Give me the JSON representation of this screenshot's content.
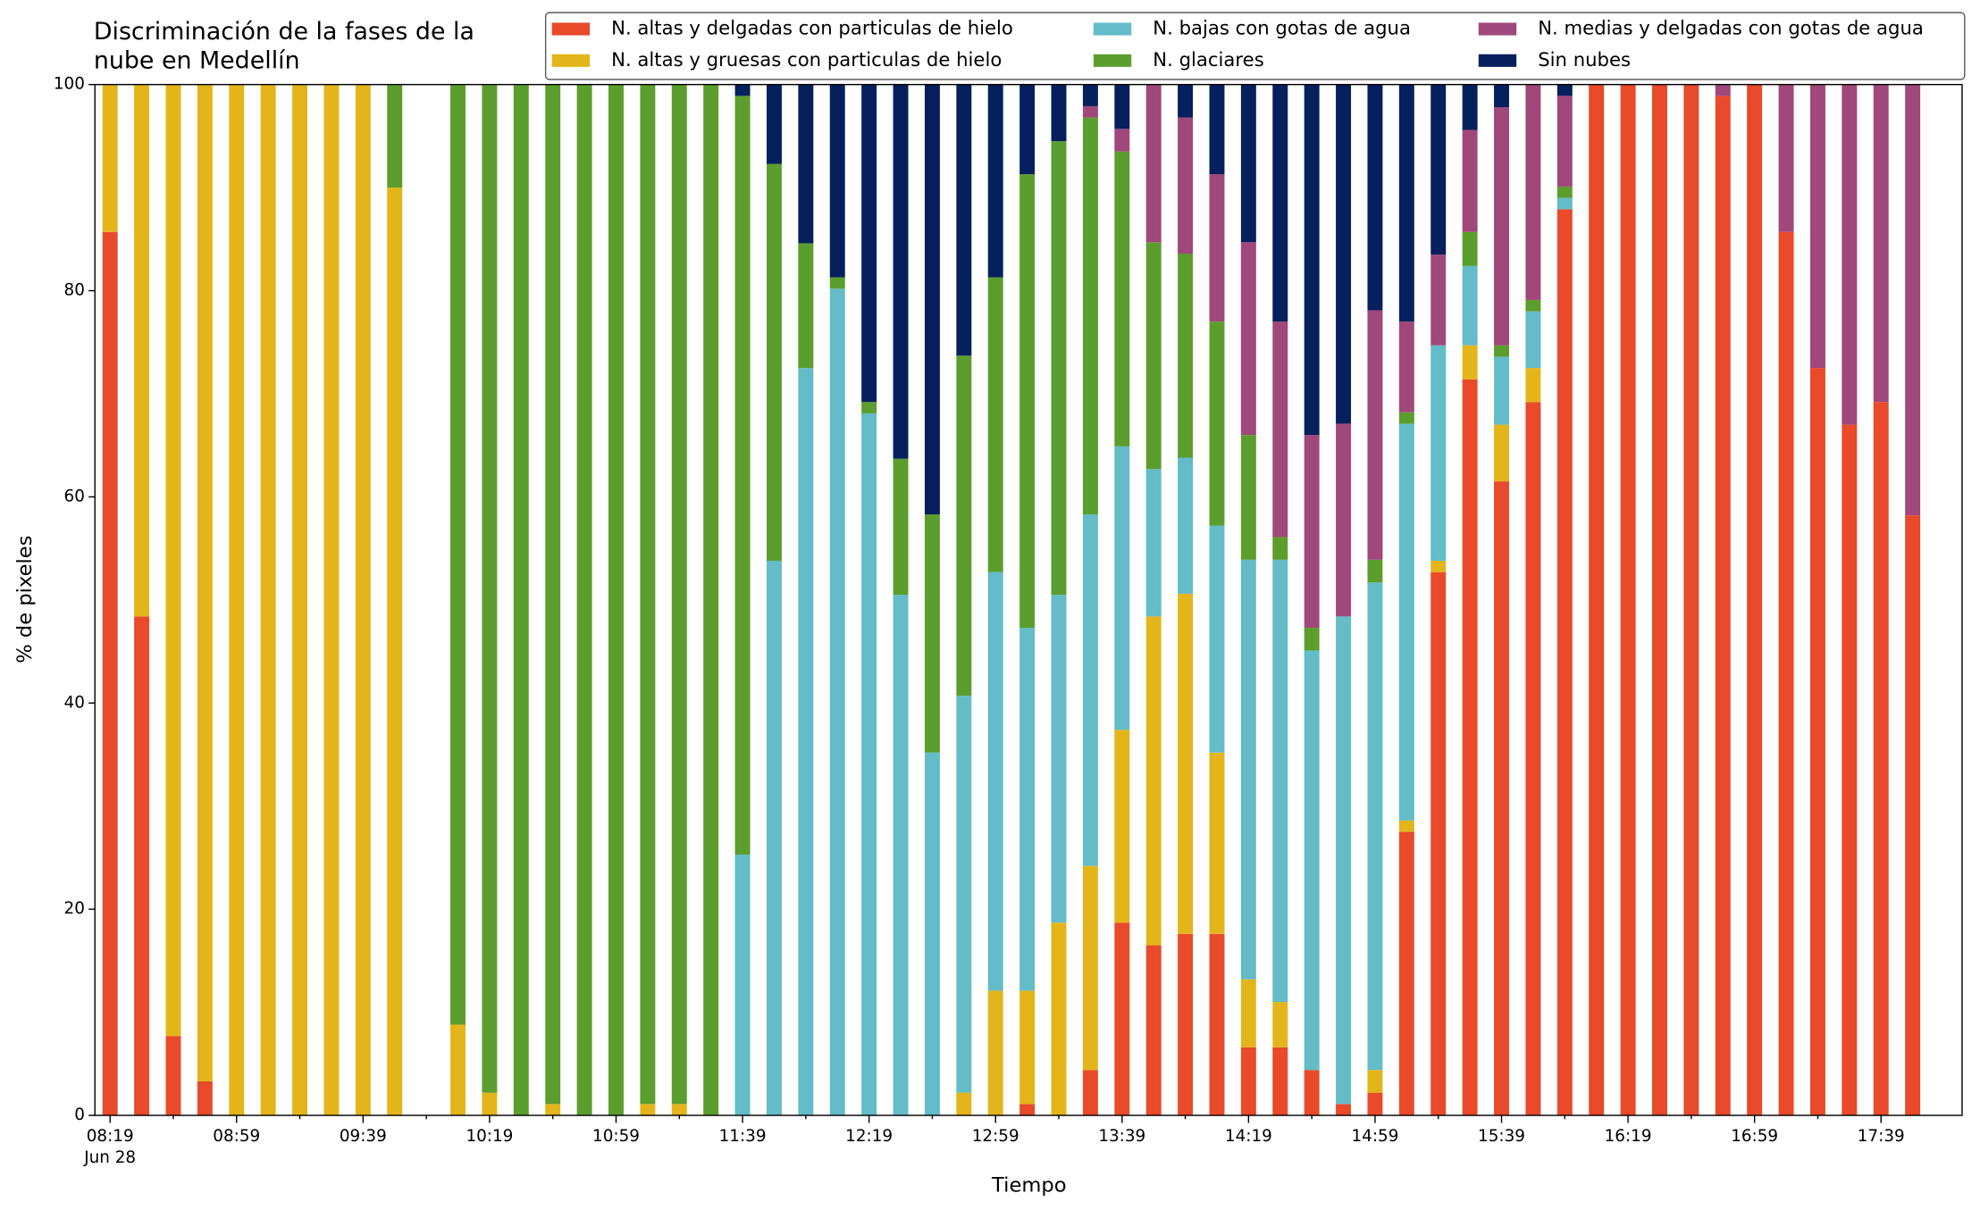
{
  "chart_data": {
    "type": "stacked_bar",
    "title": "Discriminación de la fases de la nube en Medellín",
    "x_label": "Tiempo",
    "y_label": "% de pixeles",
    "date_label": "Jun 28",
    "categories": [
      "08:19",
      null,
      null,
      null,
      "08:59",
      null,
      null,
      null,
      "09:39",
      null,
      null,
      null,
      "10:19",
      null,
      null,
      null,
      "10:59",
      null,
      null,
      null,
      "11:39",
      null,
      null,
      null,
      "12:19",
      null,
      null,
      null,
      "12:59",
      null,
      null,
      null,
      "13:39",
      null,
      null,
      null,
      "14:19",
      null,
      null,
      null,
      "14:59",
      null,
      null,
      null,
      "15:39",
      null,
      null,
      null,
      "16:19",
      null,
      null,
      null,
      "16:59",
      null,
      null,
      null,
      "17:39",
      null
    ],
    "series": [
      {
        "name": "N. altas y delgadas con particulas de hielo",
        "color": "#e84a2a",
        "values": [
          85.7,
          48.4,
          7.7,
          3.3,
          0,
          0,
          0,
          0,
          0,
          0,
          null,
          0,
          0,
          0,
          0,
          0,
          0,
          0,
          0,
          0,
          0,
          0,
          0,
          0,
          0,
          0,
          0,
          0,
          0,
          1.1,
          0,
          4.4,
          18.7,
          16.5,
          17.6,
          17.6,
          6.6,
          6.6,
          4.4,
          1.1,
          2.2,
          27.5,
          52.7,
          71.4,
          61.5,
          69.2,
          87.9,
          100,
          100,
          100,
          100,
          98.9,
          100,
          85.7,
          72.5,
          67.0,
          69.2,
          58.2
        ]
      },
      {
        "name": "N. altas y gruesas con particulas de hielo",
        "color": "#e4b51a",
        "values": [
          14.3,
          51.6,
          92.3,
          96.7,
          100,
          100,
          100,
          100,
          100,
          90,
          null,
          8.8,
          2.2,
          0,
          1.1,
          0,
          0,
          1.1,
          1.1,
          0,
          0,
          0,
          0,
          0,
          0,
          0,
          0,
          2.2,
          12.1,
          11.0,
          18.7,
          19.8,
          18.7,
          31.9,
          33.0,
          17.6,
          6.6,
          4.4,
          0,
          0,
          2.2,
          1.1,
          1.1,
          3.3,
          5.5,
          3.3,
          0,
          0,
          0,
          0,
          0,
          0,
          0,
          0,
          0,
          0,
          0,
          0
        ]
      },
      {
        "name": "N. bajas con gotas de agua",
        "color": "#63bcc8",
        "values": [
          0,
          0,
          0,
          0,
          0,
          0,
          0,
          0,
          0,
          0,
          null,
          0,
          0,
          0,
          0,
          0,
          0,
          0,
          0,
          0,
          25.3,
          53.8,
          72.5,
          80.2,
          68.1,
          50.5,
          35.2,
          38.5,
          40.6,
          35.2,
          31.8,
          34.1,
          27.5,
          14.3,
          13.2,
          22.0,
          40.7,
          42.9,
          40.7,
          47.3,
          47.3,
          38.5,
          20.9,
          7.7,
          6.6,
          5.5,
          1.1,
          0,
          0,
          0,
          0,
          0,
          0,
          0,
          0,
          0,
          0,
          0
        ]
      },
      {
        "name": "N. glaciares",
        "color": "#5c9e2e",
        "values": [
          0,
          0,
          0,
          0,
          0,
          0,
          0,
          0,
          0,
          10,
          null,
          91.2,
          97.8,
          100,
          98.9,
          100,
          100,
          98.9,
          98.9,
          100,
          73.6,
          38.5,
          12.1,
          1.1,
          1.1,
          13.2,
          23.1,
          33.0,
          28.6,
          44.0,
          44.0,
          38.5,
          28.6,
          22.0,
          19.8,
          19.8,
          12.1,
          2.2,
          2.2,
          0,
          2.2,
          1.1,
          0,
          3.3,
          1.1,
          1.1,
          1.1,
          0,
          0,
          0,
          0,
          0,
          0,
          0,
          0,
          0,
          0,
          0
        ]
      },
      {
        "name": "N. medias y delgadas con gotas de agua",
        "color": "#a0487b",
        "values": [
          0,
          0,
          0,
          0,
          0,
          0,
          0,
          0,
          0,
          0,
          null,
          0,
          0,
          0,
          0,
          0,
          0,
          0,
          0,
          0,
          0,
          0,
          0,
          0,
          0,
          0,
          0,
          0,
          0,
          0,
          0,
          1.1,
          2.2,
          15.3,
          13.2,
          14.3,
          18.7,
          20.9,
          18.7,
          18.7,
          24.2,
          8.8,
          8.8,
          9.9,
          23.1,
          20.9,
          8.8,
          0,
          0,
          0,
          0,
          1.1,
          0,
          14.3,
          27.5,
          33.0,
          30.8,
          41.8
        ]
      },
      {
        "name": "Sin nubes",
        "color": "#06205e",
        "values": [
          0,
          0,
          0,
          0,
          0,
          0,
          0,
          0,
          0,
          0,
          null,
          0,
          0,
          0,
          0,
          0,
          0,
          0,
          0,
          0,
          1.1,
          7.7,
          15.4,
          18.7,
          30.8,
          36.3,
          41.7,
          26.3,
          18.7,
          8.7,
          5.5,
          2.1,
          4.3,
          0,
          3.2,
          8.7,
          15.3,
          23.0,
          34.0,
          32.9,
          21.9,
          23.0,
          16.5,
          4.4,
          2.2,
          0,
          1.1,
          0,
          0,
          0,
          0,
          0,
          0,
          0,
          0,
          0,
          0,
          0
        ]
      }
    ],
    "ylim": [
      0,
      100
    ],
    "yticks": [
      0,
      20,
      40,
      60,
      80,
      100
    ],
    "grid": false,
    "legend": "upper right"
  }
}
